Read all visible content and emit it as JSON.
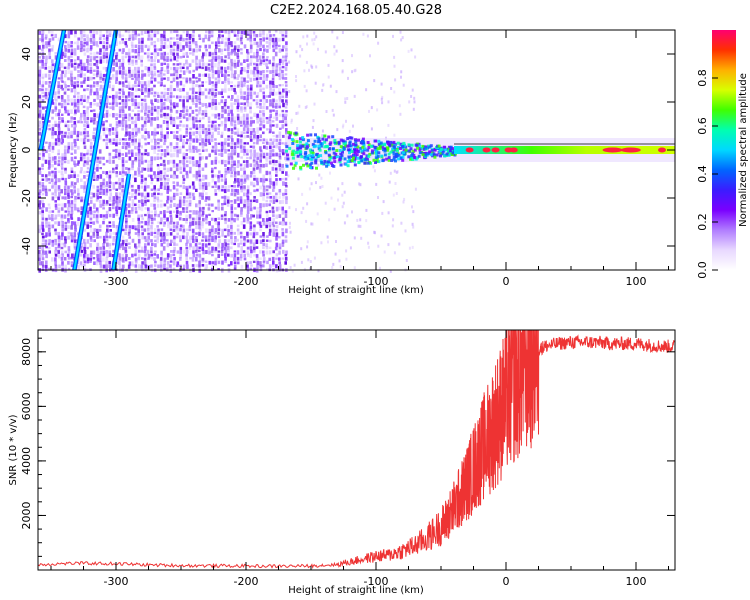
{
  "title": "C2E2.2024.168.05.40.G28",
  "chart_data": [
    {
      "type": "heatmap",
      "xlabel": "Height of straight line (km)",
      "ylabel": "Frequency (Hz)",
      "xlim": [
        -360,
        130
      ],
      "ylim": [
        -50,
        50
      ],
      "xticks": [
        -300,
        -200,
        -100,
        0,
        100
      ],
      "yticks": [
        -40,
        -20,
        0,
        20,
        40
      ],
      "colorbar": {
        "label": "Normalized spectral amplitude",
        "range": [
          0.0,
          1.0
        ],
        "ticks": [
          0.0,
          0.2,
          0.4,
          0.6,
          0.8
        ],
        "colormap": [
          "#ffffff",
          "#e8d8ff",
          "#b07cff",
          "#7a00ff",
          "#3b1cff",
          "#0066ff",
          "#00d8ff",
          "#00ffb0",
          "#40ff00",
          "#d8ff00",
          "#ffb000",
          "#ff3000",
          "#ff0070"
        ]
      },
      "features": {
        "noise_region_x": [
          -360,
          -170
        ],
        "carrier_start_x": -170,
        "carrier_frequency": 0,
        "diagonal_lines": [
          {
            "x": [
              -332,
              -300
            ],
            "y": [
              -50,
              50
            ]
          },
          {
            "x": [
              -302,
              -290
            ],
            "y": [
              -50,
              -10
            ]
          },
          {
            "x": [
              -358,
              -340
            ],
            "y": [
              0,
              50
            ]
          }
        ]
      }
    },
    {
      "type": "line",
      "xlabel": "Height of straight line (km)",
      "ylabel": "SNR (10 * v/v)",
      "xlim": [
        -360,
        130
      ],
      "ylim": [
        0,
        8800
      ],
      "xticks": [
        -300,
        -200,
        -100,
        0,
        100
      ],
      "yticks": [
        2000,
        4000,
        6000,
        8000
      ],
      "color": "#ee3333",
      "x": [
        -360,
        -330,
        -300,
        -270,
        -240,
        -210,
        -180,
        -150,
        -130,
        -115,
        -100,
        -90,
        -80,
        -70,
        -60,
        -50,
        -45,
        -40,
        -35,
        -30,
        -25,
        -20,
        -15,
        -10,
        -5,
        0,
        5,
        10,
        15,
        20,
        25,
        30,
        40,
        50,
        60,
        70,
        80,
        90,
        100,
        110,
        120,
        130
      ],
      "y": [
        200,
        250,
        230,
        180,
        160,
        150,
        140,
        150,
        200,
        350,
        500,
        550,
        700,
        900,
        1200,
        1600,
        1900,
        2300,
        2700,
        3200,
        3700,
        4200,
        4700,
        5200,
        5700,
        6200,
        6800,
        7200,
        7600,
        7900,
        8100,
        8200,
        8300,
        8350,
        8350,
        8350,
        8300,
        8300,
        8300,
        8250,
        8200,
        8200
      ]
    }
  ]
}
